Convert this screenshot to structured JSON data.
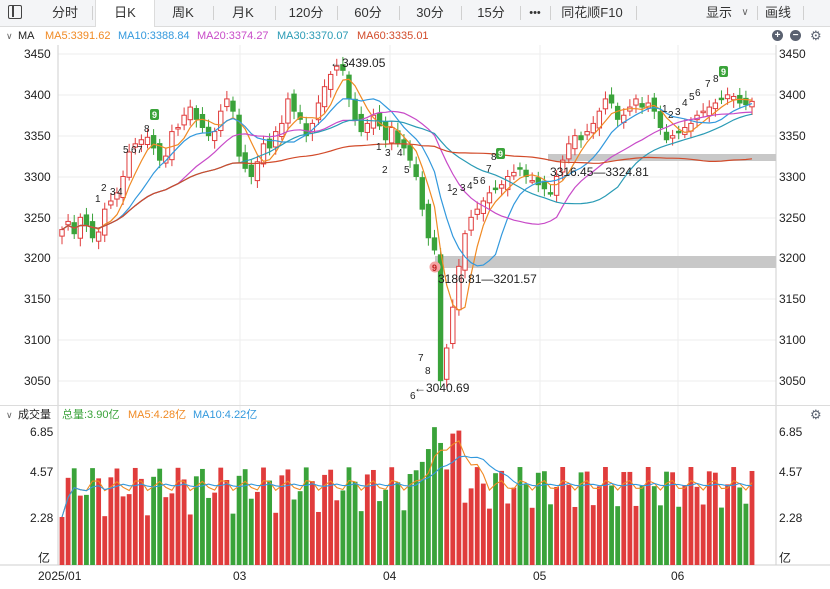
{
  "toolbar": {
    "items": [
      "分时",
      "日K",
      "周K",
      "月K",
      "120分",
      "60分",
      "30分",
      "15分",
      "•••",
      "同花顺F10"
    ],
    "active": "日K",
    "display_label": "显示",
    "draw_label": "画线"
  },
  "ma_legend": {
    "title": "MA",
    "ma5": "MA5:3391.62",
    "ma10": "MA10:3388.84",
    "ma20": "MA20:3374.27",
    "ma30": "MA30:3370.07",
    "ma60": "MA60:3335.01"
  },
  "price_axis": {
    "labels": [
      "3450",
      "3400",
      "3350",
      "3300",
      "3250",
      "3200",
      "3150",
      "3100",
      "3050"
    ]
  },
  "annotations": {
    "high": "←3439.05",
    "low": "←3040.69",
    "gap1": "3186.81—3201.57",
    "gap2": "3316.45—3324.81"
  },
  "volume_legend": {
    "title": "成交量",
    "total": "总量:3.90亿",
    "ma5": "MA5:4.28亿",
    "ma10": "MA10:4.22亿"
  },
  "volume_axis": {
    "labels": [
      "6.85",
      "4.57",
      "2.28",
      "亿"
    ]
  },
  "date_axis": {
    "labels": [
      "2025/01",
      "03",
      "04",
      "05",
      "06"
    ]
  },
  "colors": {
    "up": "#e03c3c",
    "down": "#3aa33a",
    "ma5": "#f08a24",
    "ma10": "#3399dd",
    "ma20": "#c84bc8",
    "ma30": "#2a9bb5",
    "ma60": "#d24b2a",
    "gap_band": "#c8c8c8"
  },
  "icons": [
    "sidebar-toggle-icon",
    "chevron-down-icon",
    "plus-icon",
    "minus-icon",
    "gear-icon"
  ]
}
